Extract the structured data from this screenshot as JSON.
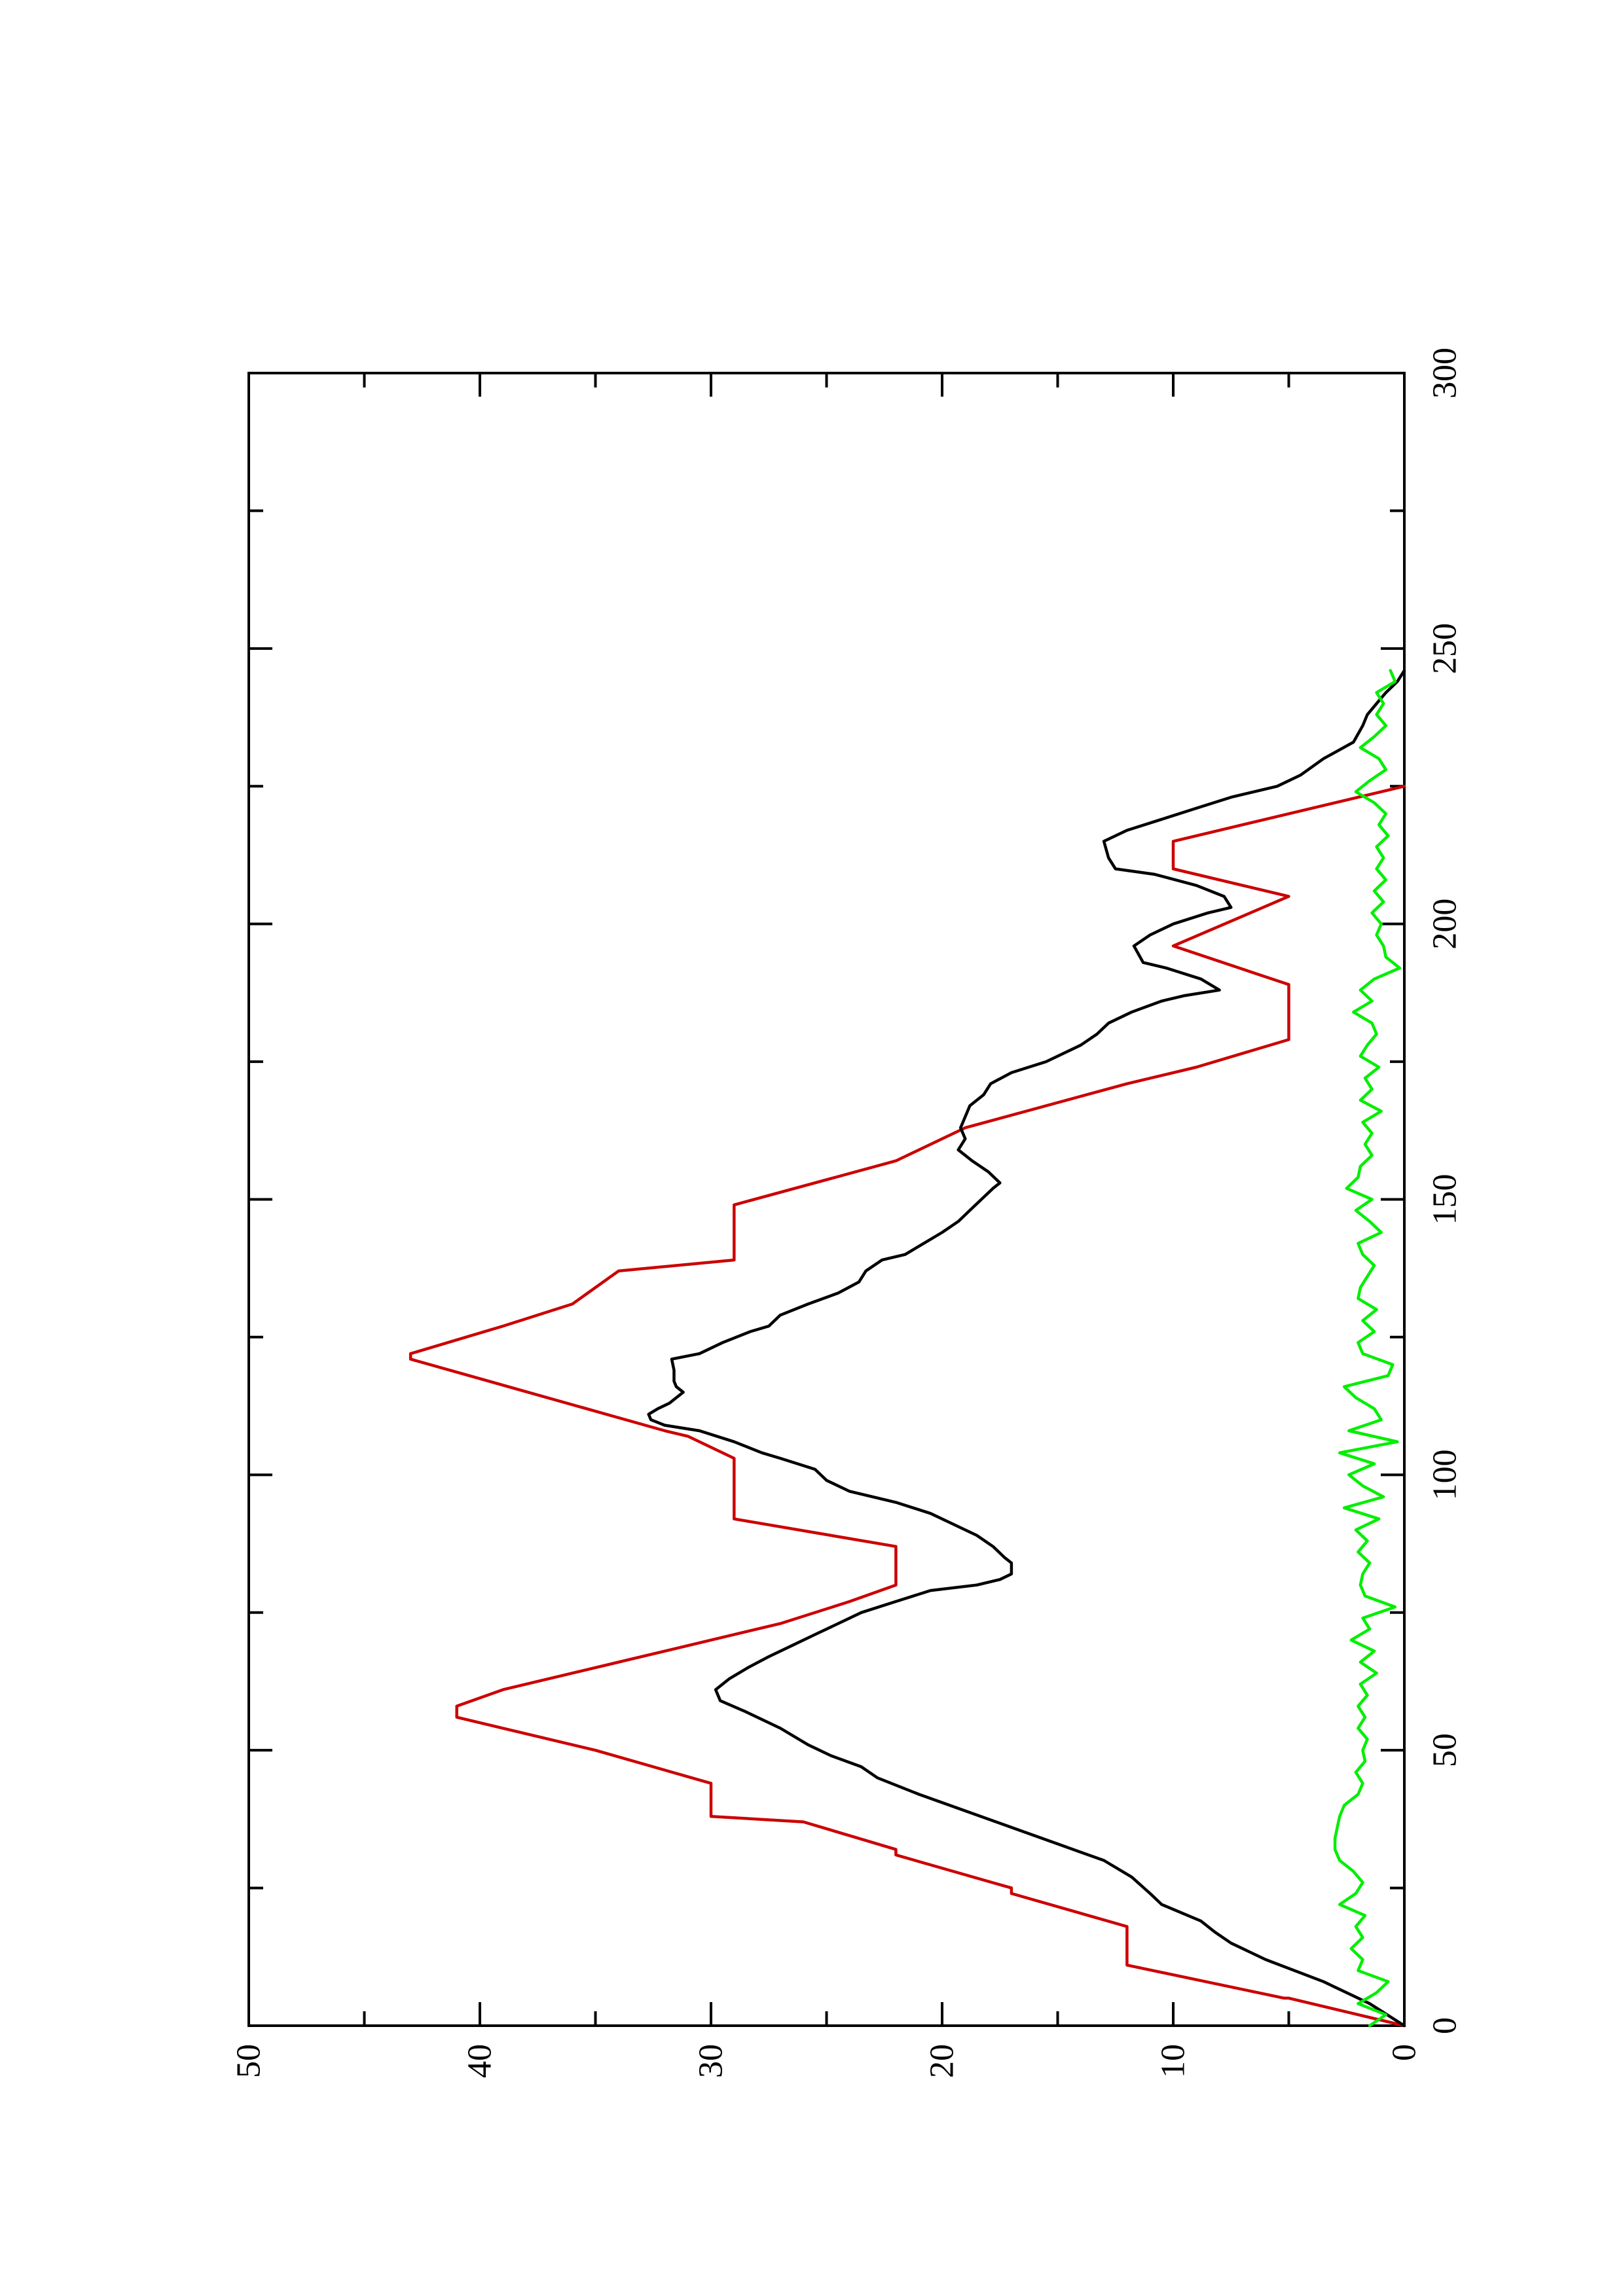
{
  "chart_data": {
    "type": "line",
    "orientation": "rotated-90-counterclockwise",
    "title": "",
    "xlabel": "",
    "ylabel": "",
    "xlim": [
      0,
      300
    ],
    "ylim": [
      0,
      50
    ],
    "x_ticks": [
      0,
      50,
      100,
      150,
      200,
      250,
      300
    ],
    "y_ticks": [
      0,
      10,
      20,
      30,
      40,
      50
    ],
    "x_tick_labels": [
      "0",
      "50",
      "100",
      "150",
      "200",
      "250",
      "300"
    ],
    "y_tick_labels": [
      "0",
      "10",
      "20",
      "30",
      "40",
      "50"
    ],
    "grid": false,
    "legend": "none",
    "series": [
      {
        "color": "#cc0000",
        "points": [
          [
            0,
            0
          ],
          [
            2,
            2
          ],
          [
            5,
            5
          ],
          [
            5,
            5.2
          ],
          [
            11,
            12
          ],
          [
            12,
            12
          ],
          [
            18,
            12
          ],
          [
            24,
            17
          ],
          [
            25,
            17
          ],
          [
            31,
            22
          ],
          [
            32,
            22
          ],
          [
            37,
            26
          ],
          [
            38,
            30
          ],
          [
            43,
            30
          ],
          [
            44,
            30
          ],
          [
            50,
            35
          ],
          [
            56,
            41
          ],
          [
            58,
            41
          ],
          [
            61,
            39
          ],
          [
            64,
            36
          ],
          [
            66,
            34
          ],
          [
            70,
            30
          ],
          [
            73,
            27
          ],
          [
            77,
            24
          ],
          [
            80,
            22
          ],
          [
            87,
            22
          ],
          [
            92,
            29
          ],
          [
            103,
            29
          ],
          [
            107,
            31
          ],
          [
            108,
            32
          ],
          [
            121,
            43
          ],
          [
            122,
            43
          ],
          [
            127,
            39
          ],
          [
            131,
            36
          ],
          [
            137,
            34
          ],
          [
            139,
            29
          ],
          [
            149,
            29
          ],
          [
            157,
            22
          ],
          [
            163,
            19
          ],
          [
            171,
            12
          ],
          [
            174,
            9
          ],
          [
            179,
            5
          ],
          [
            189,
            5
          ],
          [
            196,
            10
          ],
          [
            205,
            5
          ],
          [
            210,
            10
          ],
          [
            215,
            10
          ],
          [
            225,
            0
          ]
        ]
      },
      {
        "color": "#000000",
        "points": [
          [
            0,
            0
          ],
          [
            4,
            1.5
          ],
          [
            8,
            3.5
          ],
          [
            12,
            6
          ],
          [
            15,
            7.5
          ],
          [
            17,
            8.2
          ],
          [
            19,
            8.8
          ],
          [
            22,
            10.5
          ],
          [
            24,
            11
          ],
          [
            27,
            11.8
          ],
          [
            30,
            13
          ],
          [
            33,
            15
          ],
          [
            36,
            17
          ],
          [
            39,
            19
          ],
          [
            42,
            21
          ],
          [
            45,
            22.8
          ],
          [
            47,
            23.5
          ],
          [
            49,
            24.8
          ],
          [
            51,
            25.8
          ],
          [
            54,
            27
          ],
          [
            57,
            28.5
          ],
          [
            59,
            29.6
          ],
          [
            61,
            29.8
          ],
          [
            63,
            29.2
          ],
          [
            65,
            28.4
          ],
          [
            67,
            27.5
          ],
          [
            69,
            26.5
          ],
          [
            71,
            25.5
          ],
          [
            73,
            24.5
          ],
          [
            75,
            23.5
          ],
          [
            77,
            22
          ],
          [
            79,
            20.5
          ],
          [
            80,
            18.5
          ],
          [
            81,
            17.5
          ],
          [
            82,
            17
          ],
          [
            84,
            17
          ],
          [
            85,
            17.3
          ],
          [
            87,
            17.8
          ],
          [
            89,
            18.5
          ],
          [
            91,
            19.5
          ],
          [
            93,
            20.5
          ],
          [
            95,
            22
          ],
          [
            97,
            24
          ],
          [
            99,
            25
          ],
          [
            101,
            25.5
          ],
          [
            103,
            27
          ],
          [
            104,
            27.8
          ],
          [
            106,
            29
          ],
          [
            108,
            30.5
          ],
          [
            109,
            32
          ],
          [
            110,
            32.6
          ],
          [
            111,
            32.7
          ],
          [
            112,
            32.3
          ],
          [
            113,
            31.8
          ],
          [
            114,
            31.5
          ],
          [
            115,
            31.2
          ],
          [
            116,
            31.5
          ],
          [
            117,
            31.6
          ],
          [
            119,
            31.6
          ],
          [
            121,
            31.7
          ],
          [
            122,
            30.5
          ],
          [
            124,
            29.5
          ],
          [
            126,
            28.3
          ],
          [
            127,
            27.5
          ],
          [
            129,
            27
          ],
          [
            131,
            25.8
          ],
          [
            133,
            24.5
          ],
          [
            135,
            23.6
          ],
          [
            137,
            23.3
          ],
          [
            139,
            22.6
          ],
          [
            140,
            21.6
          ],
          [
            142,
            20.8
          ],
          [
            144,
            20
          ],
          [
            146,
            19.3
          ],
          [
            148,
            18.8
          ],
          [
            150,
            18.3
          ],
          [
            152,
            17.8
          ],
          [
            153,
            17.5
          ],
          [
            155,
            18
          ],
          [
            157,
            18.7
          ],
          [
            159,
            19.3
          ],
          [
            161,
            19
          ],
          [
            163,
            19.2
          ],
          [
            165,
            19
          ],
          [
            167,
            18.8
          ],
          [
            169,
            18.2
          ],
          [
            171,
            17.9
          ],
          [
            173,
            17
          ],
          [
            175,
            15.5
          ],
          [
            178,
            14
          ],
          [
            180,
            13.3
          ],
          [
            182,
            12.8
          ],
          [
            184,
            11.8
          ],
          [
            186,
            10.5
          ],
          [
            187,
            9.5
          ],
          [
            188,
            8
          ],
          [
            190,
            8.8
          ],
          [
            192,
            10.3
          ],
          [
            193,
            11.3
          ],
          [
            196,
            11.7
          ],
          [
            198,
            11
          ],
          [
            200,
            10
          ],
          [
            202,
            8.5
          ],
          [
            203,
            7.5
          ],
          [
            205,
            7.8
          ],
          [
            207,
            9
          ],
          [
            209,
            10.8
          ],
          [
            210,
            12.5
          ],
          [
            212,
            12.8
          ],
          [
            215,
            13
          ],
          [
            217,
            12
          ],
          [
            219,
            10.5
          ],
          [
            221,
            9
          ],
          [
            223,
            7.5
          ],
          [
            225,
            5.5
          ],
          [
            227,
            4.5
          ],
          [
            230,
            3.5
          ],
          [
            233,
            2.2
          ],
          [
            236,
            1.8
          ],
          [
            238,
            1.6
          ],
          [
            240,
            1.2
          ],
          [
            242,
            0.8
          ],
          [
            244,
            0.3
          ],
          [
            246,
            0
          ]
        ]
      },
      {
        "color": "#00ee00",
        "points": [
          [
            0,
            1.5
          ],
          [
            2,
            0.8
          ],
          [
            4,
            2
          ],
          [
            6,
            1.2
          ],
          [
            8,
            0.7
          ],
          [
            10,
            2
          ],
          [
            12,
            1.8
          ],
          [
            14,
            2.3
          ],
          [
            16,
            1.8
          ],
          [
            18,
            2.1
          ],
          [
            20,
            1.7
          ],
          [
            22,
            2.8
          ],
          [
            24,
            2.1
          ],
          [
            26,
            1.8
          ],
          [
            28,
            2.2
          ],
          [
            30,
            2.8
          ],
          [
            32,
            3.0
          ],
          [
            34,
            3.0
          ],
          [
            36,
            2.9
          ],
          [
            38,
            2.8
          ],
          [
            40,
            2.6
          ],
          [
            42,
            2.0
          ],
          [
            44,
            1.8
          ],
          [
            46,
            2.1
          ],
          [
            48,
            1.7
          ],
          [
            50,
            1.8
          ],
          [
            52,
            1.6
          ],
          [
            54,
            2.0
          ],
          [
            56,
            1.7
          ],
          [
            58,
            2.0
          ],
          [
            60,
            1.6
          ],
          [
            62,
            1.9
          ],
          [
            64,
            1.2
          ],
          [
            66,
            1.9
          ],
          [
            68,
            1.3
          ],
          [
            70,
            2.3
          ],
          [
            72,
            1.5
          ],
          [
            74,
            1.8
          ],
          [
            76,
            0.4
          ],
          [
            78,
            1.7
          ],
          [
            80,
            1.9
          ],
          [
            82,
            1.8
          ],
          [
            84,
            1.5
          ],
          [
            86,
            2.0
          ],
          [
            88,
            1.6
          ],
          [
            90,
            2.1
          ],
          [
            92,
            1.1
          ],
          [
            94,
            2.6
          ],
          [
            96,
            0.9
          ],
          [
            98,
            1.8
          ],
          [
            100,
            2.4
          ],
          [
            102,
            1.3
          ],
          [
            104,
            2.8
          ],
          [
            106,
            0.3
          ],
          [
            108,
            2.4
          ],
          [
            110,
            1.0
          ],
          [
            112,
            1.3
          ],
          [
            114,
            2.1
          ],
          [
            116,
            2.6
          ],
          [
            118,
            0.7
          ],
          [
            120,
            0.5
          ],
          [
            122,
            1.8
          ],
          [
            124,
            2.0
          ],
          [
            126,
            1.3
          ],
          [
            128,
            1.8
          ],
          [
            130,
            1.2
          ],
          [
            132,
            2.0
          ],
          [
            134,
            1.9
          ],
          [
            136,
            1.6
          ],
          [
            138,
            1.3
          ],
          [
            140,
            1.8
          ],
          [
            142,
            2.0
          ],
          [
            144,
            1.0
          ],
          [
            146,
            1.5
          ],
          [
            148,
            2.1
          ],
          [
            150,
            1.4
          ],
          [
            152,
            2.5
          ],
          [
            154,
            2.0
          ],
          [
            156,
            1.9
          ],
          [
            158,
            1.4
          ],
          [
            160,
            1.7
          ],
          [
            162,
            1.4
          ],
          [
            164,
            1.8
          ],
          [
            166,
            1.0
          ],
          [
            168,
            1.9
          ],
          [
            170,
            1.4
          ],
          [
            172,
            1.7
          ],
          [
            174,
            1.1
          ],
          [
            176,
            1.9
          ],
          [
            178,
            1.6
          ],
          [
            180,
            1.2
          ],
          [
            182,
            1.4
          ],
          [
            184,
            2.2
          ],
          [
            186,
            1.4
          ],
          [
            188,
            1.9
          ],
          [
            190,
            1.3
          ],
          [
            192,
            0.2
          ],
          [
            194,
            0.8
          ],
          [
            196,
            0.9
          ],
          [
            198,
            1.2
          ],
          [
            200,
            1.0
          ],
          [
            202,
            1.4
          ],
          [
            204,
            0.9
          ],
          [
            206,
            1.3
          ],
          [
            208,
            0.8
          ],
          [
            210,
            1.2
          ],
          [
            212,
            0.9
          ],
          [
            214,
            1.2
          ],
          [
            216,
            0.7
          ],
          [
            218,
            1.1
          ],
          [
            220,
            0.8
          ],
          [
            222,
            1.3
          ],
          [
            224,
            2.1
          ],
          [
            226,
            1.5
          ],
          [
            228,
            0.8
          ],
          [
            230,
            1.1
          ],
          [
            232,
            1.9
          ],
          [
            234,
            1.3
          ],
          [
            236,
            0.8
          ],
          [
            238,
            1.2
          ],
          [
            240,
            0.9
          ],
          [
            242,
            1.2
          ],
          [
            244,
            0.4
          ],
          [
            246,
            0.6
          ]
        ]
      }
    ]
  }
}
